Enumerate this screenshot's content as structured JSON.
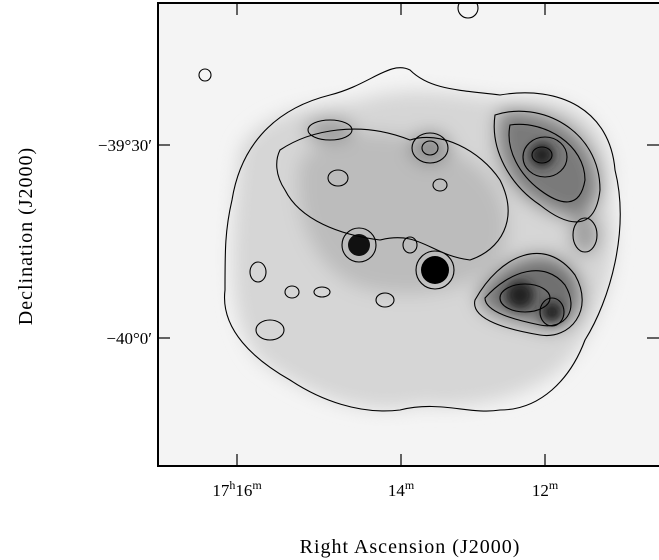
{
  "figure": {
    "x_axis": {
      "label": "Right Ascension (J2000)",
      "ticks": [
        [
          "17",
          "h",
          "16",
          "m"
        ],
        [
          "14",
          "m"
        ],
        [
          "12",
          "m"
        ]
      ]
    },
    "y_axis": {
      "label": "Declination (J2000)",
      "ticks": [
        "−39°30′",
        "−40°0′"
      ]
    }
  }
}
